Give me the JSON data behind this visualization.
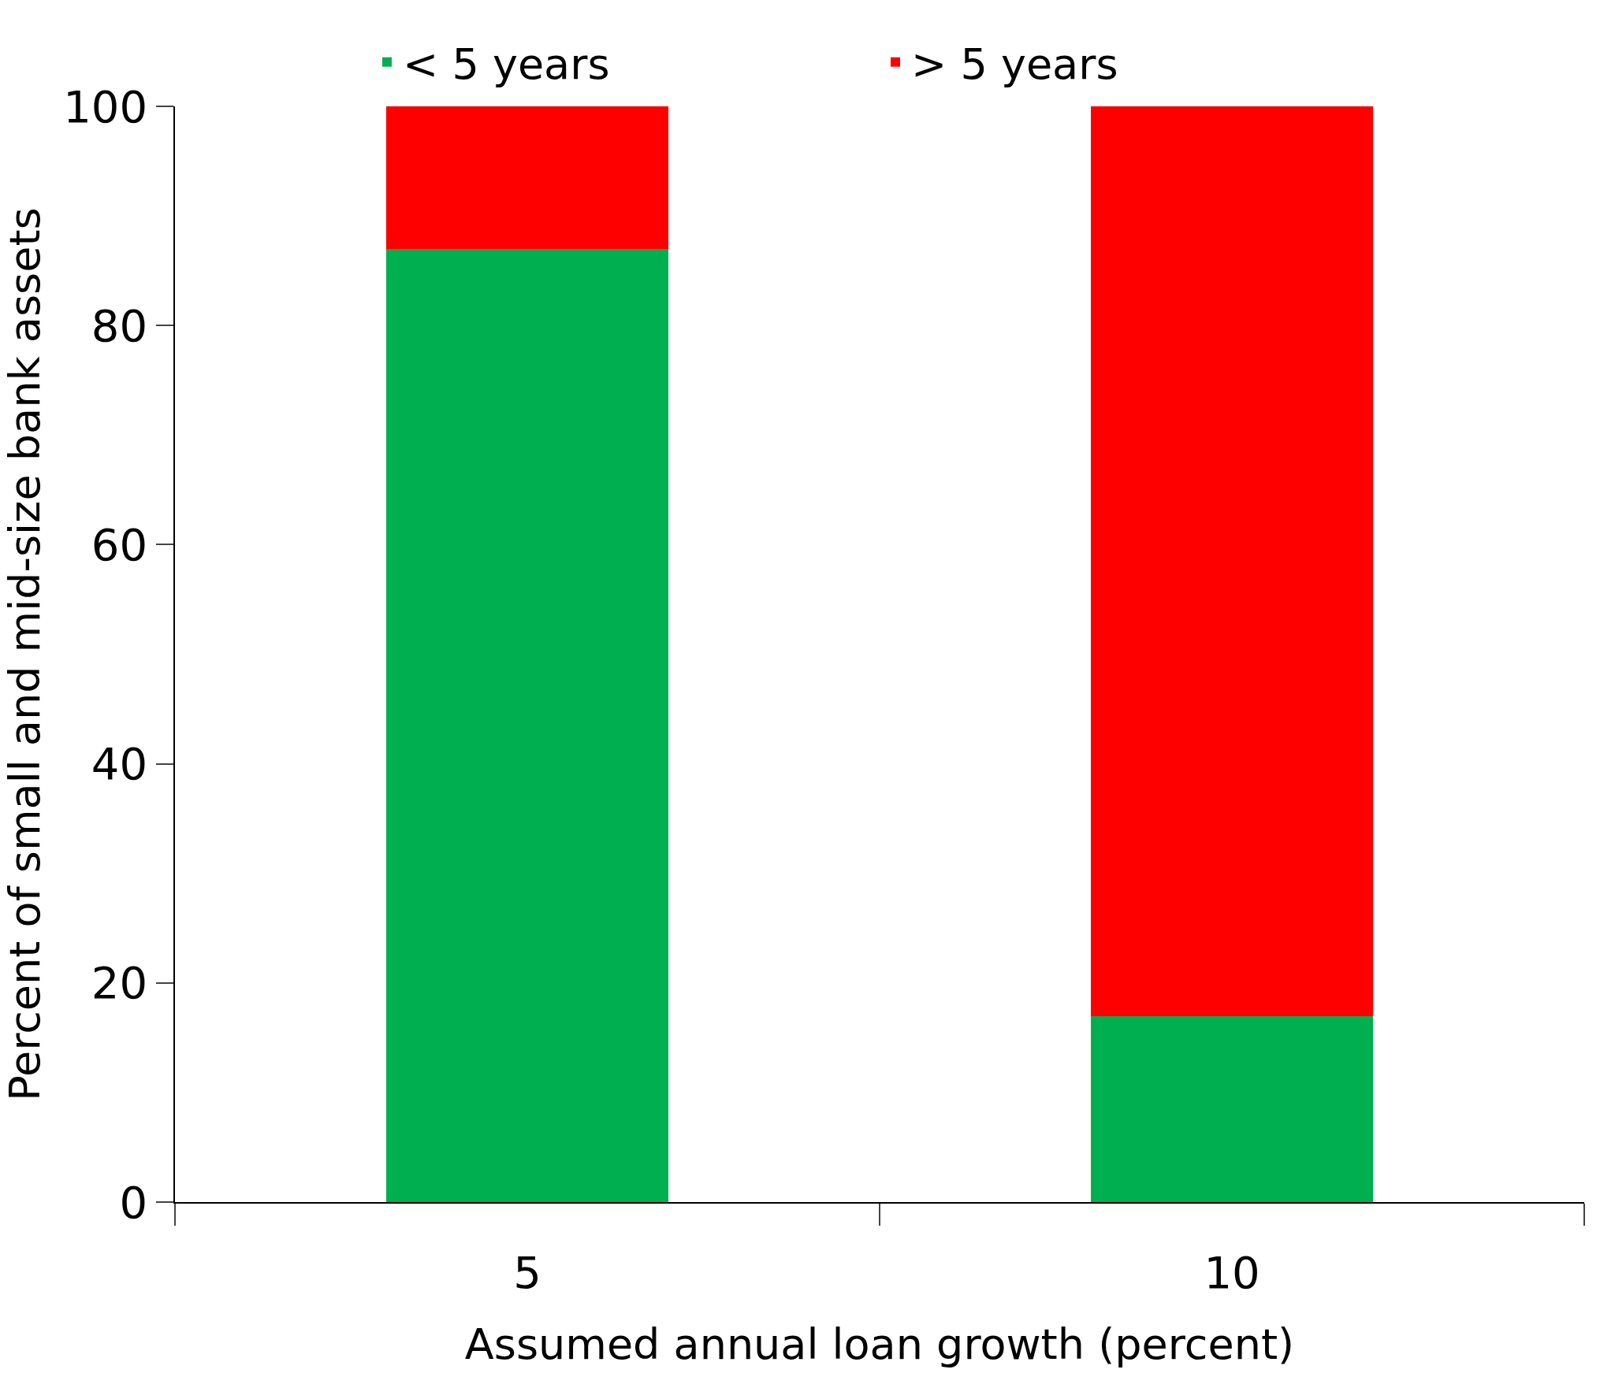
{
  "chart_data": {
    "type": "bar",
    "stacked": true,
    "xlabel": "Assumed annual loan growth (percent)",
    "ylabel": "Percent of small and mid-size bank assets",
    "categories": [
      "5",
      "10"
    ],
    "series": [
      {
        "name": "< 5 years",
        "color": "#00b050",
        "values": [
          87,
          17
        ]
      },
      {
        "name": "> 5 years",
        "color": "#ff0000",
        "values": [
          13,
          83
        ]
      }
    ],
    "ylim": [
      0,
      100
    ],
    "yticks": [
      0,
      20,
      40,
      60,
      80,
      100
    ],
    "legend": "top"
  }
}
